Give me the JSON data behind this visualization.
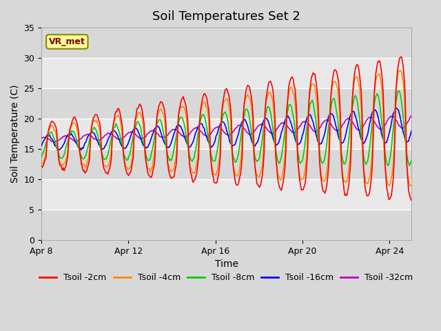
{
  "title": "Soil Temperatures Set 2",
  "xlabel": "Time",
  "ylabel": "Soil Temperature (C)",
  "ylim": [
    0,
    35
  ],
  "yticks": [
    0,
    5,
    10,
    15,
    20,
    25,
    30,
    35
  ],
  "x_tick_labels": [
    "Apr 8",
    "Apr 12",
    "Apr 16",
    "Apr 20",
    "Apr 24"
  ],
  "x_tick_positions": [
    0,
    4,
    8,
    12,
    16
  ],
  "xlim_days": [
    0,
    17
  ],
  "series_colors": [
    "#ff0000",
    "#ff8800",
    "#00cc00",
    "#0000ff",
    "#bb00bb"
  ],
  "series_labels": [
    "Tsoil -2cm",
    "Tsoil -4cm",
    "Tsoil -8cm",
    "Tsoil -16cm",
    "Tsoil -32cm"
  ],
  "figure_bg": "#d8d8d8",
  "plot_bg": "#e8e8e8",
  "band_light": "#e8e8e8",
  "band_dark": "#d8d8d8",
  "grid_color": "#ffffff",
  "annotation_text": "VR_met",
  "annotation_bg": "#ffff99",
  "annotation_border": "#888800",
  "title_fontsize": 13,
  "label_fontsize": 10,
  "tick_fontsize": 9,
  "legend_fontsize": 9
}
